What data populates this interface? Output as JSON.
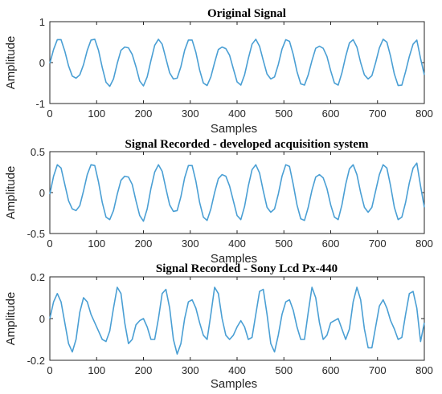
{
  "figure": {
    "series_color": "#4a9fd4",
    "axis_color": "#262626"
  },
  "chart_data": [
    {
      "type": "line",
      "title": "Original Signal",
      "xlabel": "Samples",
      "ylabel": "Amplitude",
      "xlim": [
        0,
        800
      ],
      "ylim": [
        -1,
        1
      ],
      "xticks": [
        0,
        100,
        200,
        300,
        400,
        500,
        600,
        700,
        800
      ],
      "yticks": [
        -1,
        0,
        1
      ],
      "grid": false,
      "series": [
        {
          "color": "#4a9fd4",
          "x": [
            0,
            8,
            16,
            24,
            32,
            40,
            48,
            56,
            64,
            72,
            80,
            88,
            96,
            104,
            112,
            120,
            128,
            136,
            144,
            152,
            160,
            168,
            176,
            184,
            192,
            200,
            208,
            216,
            224,
            232,
            240,
            248,
            256,
            264,
            272,
            280,
            288,
            296,
            304,
            312,
            320,
            328,
            336,
            344,
            352,
            360,
            368,
            376,
            384,
            392,
            400,
            408,
            416,
            424,
            432,
            440,
            448,
            456,
            464,
            472,
            480,
            488,
            496,
            504,
            512,
            520,
            528,
            536,
            544,
            552,
            560,
            568,
            576,
            584,
            592,
            600,
            608,
            616,
            624,
            632,
            640,
            648,
            656,
            664,
            672,
            680,
            688,
            696,
            704,
            712,
            720,
            728,
            736,
            744,
            752,
            760,
            768,
            776,
            784,
            792,
            800
          ],
          "y": [
            -0.02,
            0.32,
            0.56,
            0.56,
            0.28,
            -0.08,
            -0.33,
            -0.38,
            -0.3,
            -0.05,
            0.3,
            0.55,
            0.57,
            0.3,
            -0.12,
            -0.48,
            -0.58,
            -0.4,
            -0.02,
            0.3,
            0.38,
            0.36,
            0.2,
            -0.1,
            -0.45,
            -0.57,
            -0.35,
            0.05,
            0.42,
            0.57,
            0.45,
            0.1,
            -0.25,
            -0.4,
            -0.38,
            -0.1,
            0.3,
            0.55,
            0.55,
            0.25,
            -0.18,
            -0.5,
            -0.56,
            -0.35,
            0.0,
            0.32,
            0.38,
            0.34,
            0.18,
            -0.15,
            -0.47,
            -0.55,
            -0.3,
            0.1,
            0.45,
            0.57,
            0.4,
            0.05,
            -0.28,
            -0.4,
            -0.35,
            -0.05,
            0.33,
            0.56,
            0.52,
            0.2,
            -0.22,
            -0.52,
            -0.55,
            -0.3,
            0.05,
            0.35,
            0.4,
            0.35,
            0.15,
            -0.2,
            -0.5,
            -0.55,
            -0.25,
            0.15,
            0.48,
            0.56,
            0.38,
            0.0,
            -0.3,
            -0.4,
            -0.32,
            0.0,
            0.36,
            0.57,
            0.5,
            0.15,
            -0.28,
            -0.56,
            -0.55,
            -0.22,
            0.15,
            0.45,
            0.55,
            0.1,
            -0.3
          ]
        }
      ]
    },
    {
      "type": "line",
      "title": "Signal Recorded - developed acquisition system",
      "xlabel": "Samples",
      "ylabel": "Amplitude",
      "xlim": [
        0,
        800
      ],
      "ylim": [
        -0.5,
        0.5
      ],
      "xticks": [
        0,
        100,
        200,
        300,
        400,
        500,
        600,
        700,
        800
      ],
      "yticks": [
        -0.5,
        0,
        0.5
      ],
      "grid": false,
      "series": [
        {
          "color": "#4a9fd4",
          "x": [
            0,
            8,
            16,
            24,
            32,
            40,
            48,
            56,
            64,
            72,
            80,
            88,
            96,
            104,
            112,
            120,
            128,
            136,
            144,
            152,
            160,
            168,
            176,
            184,
            192,
            200,
            208,
            216,
            224,
            232,
            240,
            248,
            256,
            264,
            272,
            280,
            288,
            296,
            304,
            312,
            320,
            328,
            336,
            344,
            352,
            360,
            368,
            376,
            384,
            392,
            400,
            408,
            416,
            424,
            432,
            440,
            448,
            456,
            464,
            472,
            480,
            488,
            496,
            504,
            512,
            520,
            528,
            536,
            544,
            552,
            560,
            568,
            576,
            584,
            592,
            600,
            608,
            616,
            624,
            632,
            640,
            648,
            656,
            664,
            672,
            680,
            688,
            696,
            704,
            712,
            720,
            728,
            736,
            744,
            752,
            760,
            768,
            776,
            784,
            792,
            800
          ],
          "y": [
            -0.02,
            0.2,
            0.34,
            0.3,
            0.1,
            -0.1,
            -0.2,
            -0.22,
            -0.16,
            0.02,
            0.22,
            0.34,
            0.33,
            0.13,
            -0.12,
            -0.3,
            -0.33,
            -0.22,
            -0.02,
            0.15,
            0.2,
            0.19,
            0.1,
            -0.1,
            -0.28,
            -0.35,
            -0.2,
            0.05,
            0.25,
            0.34,
            0.26,
            0.05,
            -0.15,
            -0.23,
            -0.22,
            -0.05,
            0.18,
            0.33,
            0.33,
            0.14,
            -0.12,
            -0.3,
            -0.34,
            -0.2,
            0.0,
            0.17,
            0.22,
            0.2,
            0.08,
            -0.1,
            -0.28,
            -0.33,
            -0.17,
            0.08,
            0.28,
            0.34,
            0.24,
            0.02,
            -0.18,
            -0.24,
            -0.2,
            -0.02,
            0.2,
            0.34,
            0.32,
            0.1,
            -0.15,
            -0.32,
            -0.34,
            -0.18,
            0.03,
            0.19,
            0.22,
            0.18,
            0.05,
            -0.15,
            -0.3,
            -0.33,
            -0.15,
            0.1,
            0.29,
            0.34,
            0.22,
            0.0,
            -0.18,
            -0.24,
            -0.18,
            0.02,
            0.22,
            0.34,
            0.3,
            0.08,
            -0.18,
            -0.33,
            -0.3,
            -0.12,
            0.12,
            0.3,
            0.36,
            0.08,
            -0.18
          ]
        }
      ]
    },
    {
      "type": "line",
      "title": "Signal Recorded - Sony Lcd Px-440",
      "xlabel": "Samples",
      "ylabel": "Amplitude",
      "xlim": [
        0,
        800
      ],
      "ylim": [
        -0.2,
        0.2
      ],
      "xticks": [
        0,
        100,
        200,
        300,
        400,
        500,
        600,
        700,
        800
      ],
      "yticks": [
        -0.2,
        0,
        0.2
      ],
      "grid": false,
      "series": [
        {
          "color": "#4a9fd4",
          "x": [
            0,
            8,
            16,
            24,
            32,
            40,
            48,
            56,
            64,
            72,
            80,
            88,
            96,
            104,
            112,
            120,
            128,
            136,
            144,
            152,
            160,
            168,
            176,
            184,
            192,
            200,
            208,
            216,
            224,
            232,
            240,
            248,
            256,
            264,
            272,
            280,
            288,
            296,
            304,
            312,
            320,
            328,
            336,
            344,
            352,
            360,
            368,
            376,
            384,
            392,
            400,
            408,
            416,
            424,
            432,
            440,
            448,
            456,
            464,
            472,
            480,
            488,
            496,
            504,
            512,
            520,
            528,
            536,
            544,
            552,
            560,
            568,
            576,
            584,
            592,
            600,
            608,
            616,
            624,
            632,
            640,
            648,
            656,
            664,
            672,
            680,
            688,
            696,
            704,
            712,
            720,
            728,
            736,
            744,
            752,
            760,
            768,
            776,
            784,
            792,
            800
          ],
          "y": [
            0.0,
            0.08,
            0.12,
            0.08,
            -0.02,
            -0.12,
            -0.16,
            -0.1,
            0.03,
            0.1,
            0.08,
            0.02,
            -0.02,
            -0.06,
            -0.1,
            -0.11,
            -0.06,
            0.05,
            0.15,
            0.12,
            -0.02,
            -0.12,
            -0.1,
            -0.03,
            -0.01,
            0.0,
            -0.04,
            -0.1,
            -0.1,
            0.0,
            0.12,
            0.14,
            0.05,
            -0.1,
            -0.17,
            -0.12,
            0.0,
            0.08,
            0.09,
            0.05,
            -0.02,
            -0.08,
            -0.1,
            0.02,
            0.15,
            0.12,
            0.0,
            -0.08,
            -0.1,
            -0.08,
            -0.04,
            -0.01,
            -0.04,
            -0.1,
            -0.09,
            0.02,
            0.13,
            0.14,
            0.02,
            -0.12,
            -0.16,
            -0.08,
            0.02,
            0.08,
            0.09,
            0.04,
            -0.04,
            -0.1,
            -0.1,
            0.03,
            0.15,
            0.1,
            -0.02,
            -0.1,
            -0.08,
            -0.02,
            -0.01,
            0.0,
            -0.05,
            -0.1,
            -0.05,
            0.08,
            0.15,
            0.09,
            -0.05,
            -0.14,
            -0.14,
            -0.04,
            0.06,
            0.09,
            0.05,
            -0.01,
            -0.05,
            -0.1,
            -0.09,
            0.02,
            0.12,
            0.13,
            0.05,
            -0.11,
            -0.02
          ]
        }
      ]
    }
  ]
}
